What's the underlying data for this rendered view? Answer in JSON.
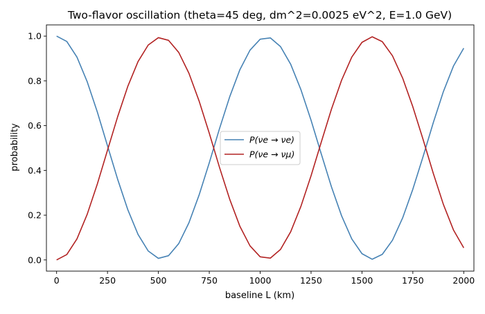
{
  "chart_data": {
    "type": "line",
    "title": "Two-flavor oscillation (theta=45 deg, dm^2=0.0025 eV^2, E=1.0 GeV)",
    "xlabel": "baseline L (km)",
    "ylabel": "probability",
    "xlim": [
      -50,
      2050
    ],
    "ylim": [
      -0.05,
      1.05
    ],
    "xticks": [
      0,
      250,
      500,
      750,
      1000,
      1250,
      1500,
      1750,
      2000
    ],
    "xtick_labels": [
      "0",
      "250",
      "500",
      "750",
      "1000",
      "1250",
      "1500",
      "1750",
      "2000"
    ],
    "yticks": [
      0.0,
      0.2,
      0.4,
      0.6,
      0.8,
      1.0
    ],
    "ytick_labels": [
      "0.0",
      "0.2",
      "0.4",
      "0.6",
      "0.8",
      "1.0"
    ],
    "grid": false,
    "legend_position": "center-right",
    "x": [
      0,
      50,
      100,
      150,
      200,
      250,
      300,
      350,
      400,
      450,
      500,
      550,
      600,
      650,
      700,
      750,
      800,
      850,
      900,
      950,
      1000,
      1050,
      1100,
      1150,
      1200,
      1250,
      1300,
      1350,
      1400,
      1450,
      1500,
      1550,
      1600,
      1650,
      1700,
      1750,
      1800,
      1850,
      1900,
      1950,
      2000
    ],
    "series": [
      {
        "name": "P(νe → νe)",
        "color": "#4682b4",
        "values": [
          1.0,
          0.976,
          0.906,
          0.797,
          0.661,
          0.51,
          0.36,
          0.224,
          0.114,
          0.04,
          0.007,
          0.019,
          0.073,
          0.166,
          0.29,
          0.434,
          0.586,
          0.728,
          0.849,
          0.937,
          0.986,
          0.992,
          0.953,
          0.874,
          0.761,
          0.624,
          0.474,
          0.327,
          0.197,
          0.094,
          0.028,
          0.003,
          0.025,
          0.088,
          0.188,
          0.316,
          0.461,
          0.612,
          0.752,
          0.867,
          0.946
        ]
      },
      {
        "name": "P(νe → νμ)",
        "color": "#b22222",
        "values": [
          0.0,
          0.024,
          0.094,
          0.203,
          0.339,
          0.49,
          0.64,
          0.776,
          0.886,
          0.96,
          0.993,
          0.981,
          0.927,
          0.834,
          0.71,
          0.566,
          0.414,
          0.272,
          0.151,
          0.063,
          0.014,
          0.008,
          0.047,
          0.126,
          0.239,
          0.376,
          0.526,
          0.673,
          0.803,
          0.906,
          0.972,
          0.997,
          0.975,
          0.912,
          0.812,
          0.684,
          0.539,
          0.388,
          0.248,
          0.133,
          0.054
        ]
      }
    ]
  }
}
